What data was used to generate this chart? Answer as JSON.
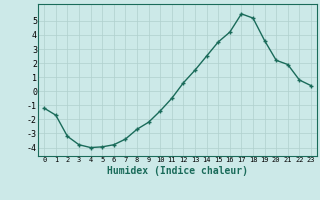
{
  "x": [
    0,
    1,
    2,
    3,
    4,
    5,
    6,
    7,
    8,
    9,
    10,
    11,
    12,
    13,
    14,
    15,
    16,
    17,
    18,
    19,
    20,
    21,
    22,
    23
  ],
  "y": [
    -1.2,
    -1.7,
    -3.2,
    -3.8,
    -4.0,
    -3.95,
    -3.8,
    -3.4,
    -2.7,
    -2.2,
    -1.4,
    -0.5,
    0.6,
    1.5,
    2.5,
    3.5,
    4.2,
    5.5,
    5.2,
    3.6,
    2.2,
    1.9,
    0.8,
    0.4
  ],
  "xlabel": "Humidex (Indice chaleur)",
  "xlim": [
    -0.5,
    23.5
  ],
  "ylim": [
    -4.6,
    6.2
  ],
  "yticks": [
    -4,
    -3,
    -2,
    -1,
    0,
    1,
    2,
    3,
    4,
    5
  ],
  "xticks": [
    0,
    1,
    2,
    3,
    4,
    5,
    6,
    7,
    8,
    9,
    10,
    11,
    12,
    13,
    14,
    15,
    16,
    17,
    18,
    19,
    20,
    21,
    22,
    23
  ],
  "line_color": "#1a6b5a",
  "bg_color": "#cce9e8",
  "grid_color": "#b0d0ce",
  "marker": "+"
}
